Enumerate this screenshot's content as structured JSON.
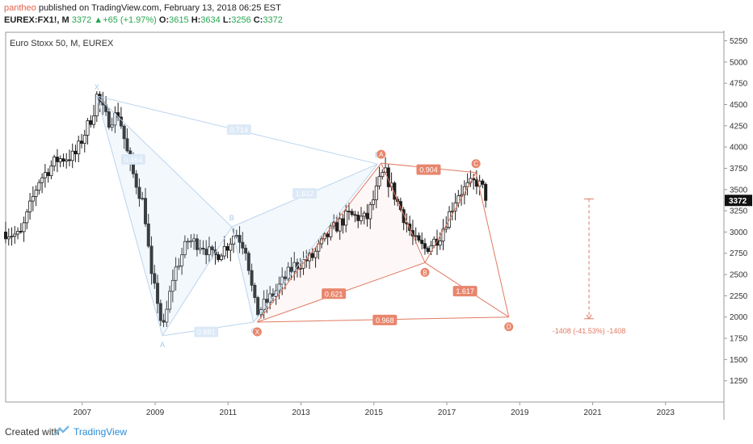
{
  "header": {
    "author": "pantheo",
    "published_text": " published on TradingView.com, February 13, 2018 06:25 EST",
    "symbol": "EUREX:FX1!, M",
    "last": "3372",
    "change_arrow": "▲",
    "change": "+65 (+1.97%)",
    "o_label": "O:",
    "o_val": "3615",
    "h_label": "H:",
    "h_val": "3634",
    "l_label": "L:",
    "l_val": "3256",
    "c_label": "C:",
    "c_val": "3372"
  },
  "chart_title": "Euro Stoxx 50, M, EUREX",
  "footer": {
    "created_with": "Created with",
    "brand": "TradingView"
  },
  "colors": {
    "up": "#ffffff",
    "down": "#1d1d1d",
    "blue_pattern": "#bcd4ee",
    "red_pattern": "#e07a62",
    "price_tag": "#111111"
  },
  "chart_data": {
    "type": "candlestick",
    "title": "Euro Stoxx 50, M, EUREX",
    "ylim": [
      1000,
      5350
    ],
    "y_ticks": [
      1250,
      1500,
      1750,
      2000,
      2250,
      2500,
      2750,
      3000,
      3250,
      3500,
      3750,
      4000,
      4250,
      4500,
      4750,
      5000,
      5250
    ],
    "x_ticks": [
      {
        "year": 2007,
        "label": "2007"
      },
      {
        "year": 2009,
        "label": "2009"
      },
      {
        "year": 2011,
        "label": "2011"
      },
      {
        "year": 2013,
        "label": "2013"
      },
      {
        "year": 2015,
        "label": "2015"
      },
      {
        "year": 2017,
        "label": "2017"
      },
      {
        "year": 2019,
        "label": "2019"
      },
      {
        "year": 2021,
        "label": "2021"
      },
      {
        "year": 2023,
        "label": "2023"
      }
    ],
    "xlim": [
      2004.9,
      2024.6
    ],
    "last_price": 3372,
    "last_price_label": "3372",
    "anchors": [
      {
        "year": 2004.9,
        "value": 3000
      },
      {
        "year": 2005.3,
        "value": 2950
      },
      {
        "year": 2005.8,
        "value": 3600
      },
      {
        "year": 2006.3,
        "value": 3850
      },
      {
        "year": 2006.8,
        "value": 3900
      },
      {
        "year": 2007.3,
        "value": 4400
      },
      {
        "year": 2007.4,
        "value": 4600
      },
      {
        "year": 2007.7,
        "value": 4300
      },
      {
        "year": 2008.0,
        "value": 4400
      },
      {
        "year": 2008.3,
        "value": 3800
      },
      {
        "year": 2008.7,
        "value": 3300
      },
      {
        "year": 2008.9,
        "value": 2450
      },
      {
        "year": 2009.1,
        "value": 2150
      },
      {
        "year": 2009.2,
        "value": 1800
      },
      {
        "year": 2009.5,
        "value": 2500
      },
      {
        "year": 2009.9,
        "value": 2900
      },
      {
        "year": 2010.3,
        "value": 2850
      },
      {
        "year": 2010.6,
        "value": 2700
      },
      {
        "year": 2011.0,
        "value": 2850
      },
      {
        "year": 2011.2,
        "value": 3000
      },
      {
        "year": 2011.5,
        "value": 2800
      },
      {
        "year": 2011.7,
        "value": 2200
      },
      {
        "year": 2011.8,
        "value": 2050
      },
      {
        "year": 2012.3,
        "value": 2300
      },
      {
        "year": 2012.8,
        "value": 2600
      },
      {
        "year": 2013.3,
        "value": 2700
      },
      {
        "year": 2013.8,
        "value": 3000
      },
      {
        "year": 2014.3,
        "value": 3200
      },
      {
        "year": 2014.8,
        "value": 3150
      },
      {
        "year": 2015.2,
        "value": 3650
      },
      {
        "year": 2015.3,
        "value": 3700
      },
      {
        "year": 2015.7,
        "value": 3300
      },
      {
        "year": 2016.1,
        "value": 2900
      },
      {
        "year": 2016.4,
        "value": 2800
      },
      {
        "year": 2016.8,
        "value": 2950
      },
      {
        "year": 2017.3,
        "value": 3450
      },
      {
        "year": 2017.8,
        "value": 3600
      },
      {
        "year": 2018.0,
        "value": 3500
      },
      {
        "year": 2018.1,
        "value": 3372
      }
    ],
    "blue_pattern": {
      "points": [
        {
          "label": "X",
          "year": 2007.4,
          "value": 4600
        },
        {
          "label": "A",
          "year": 2009.2,
          "value": 1780
        },
        {
          "label": "B",
          "year": 2011.1,
          "value": 3060
        },
        {
          "label": "C",
          "year": 2011.7,
          "value": 1940
        },
        {
          "label": "D",
          "year": 2015.1,
          "value": 3800
        }
      ],
      "ratios": [
        {
          "label": "0.714",
          "year": 2011.3,
          "value": 4200
        },
        {
          "label": "0.464",
          "year": 2008.4,
          "value": 3850
        },
        {
          "label": "1.612",
          "year": 2013.1,
          "value": 3450
        },
        {
          "label": "0.881",
          "year": 2010.4,
          "value": 1820
        }
      ]
    },
    "red_pattern": {
      "points": [
        {
          "label": "X",
          "year": 2011.8,
          "value": 1940
        },
        {
          "label": "A",
          "year": 2015.2,
          "value": 3810
        },
        {
          "label": "B",
          "year": 2016.4,
          "value": 2640
        },
        {
          "label": "C",
          "year": 2017.8,
          "value": 3700
        },
        {
          "label": "D",
          "year": 2018.7,
          "value": 2000
        }
      ],
      "ratios": [
        {
          "label": "0.904",
          "year": 2016.5,
          "value": 3730
        },
        {
          "label": "0.621",
          "year": 2013.9,
          "value": 2270
        },
        {
          "label": "1.617",
          "year": 2017.5,
          "value": 2300
        },
        {
          "label": "0.968",
          "year": 2015.3,
          "value": 1960
        }
      ]
    },
    "projection": {
      "year": 2020.9,
      "from": 3390,
      "to": 1980,
      "label": "-1408 (-41.53%) -1408"
    }
  }
}
